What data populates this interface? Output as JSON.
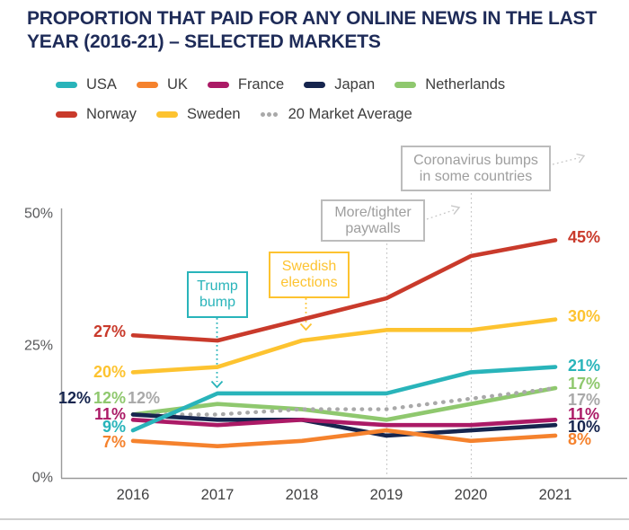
{
  "chart_data": {
    "type": "line",
    "title": "PROPORTION THAT PAID FOR ANY ONLINE NEWS IN THE LAST\nYEAR (2016-21) – SELECTED MARKETS",
    "title_color": "#1e2b58",
    "categories": [
      "2016",
      "2017",
      "2018",
      "2019",
      "2020",
      "2021"
    ],
    "unit": "%",
    "ylim": [
      0,
      50
    ],
    "yticks": [
      {
        "label": "0%",
        "value": 0
      },
      {
        "label": "25%",
        "value": 25
      },
      {
        "label": "50%",
        "value": 50
      }
    ],
    "grid": "off",
    "legend_position": "top",
    "series": [
      {
        "name": "USA",
        "color": "#29b4ba",
        "style": "solid",
        "values": [
          9,
          16,
          16,
          16,
          20,
          21
        ],
        "start_label": "9%",
        "end_label": "21%"
      },
      {
        "name": "UK",
        "color": "#f5822d",
        "style": "solid",
        "values": [
          7,
          6,
          7,
          9,
          7,
          8
        ],
        "start_label": "7%",
        "end_label": "8%"
      },
      {
        "name": "France",
        "color": "#ab1a66",
        "style": "solid",
        "values": [
          11,
          10,
          11,
          10,
          10,
          11
        ],
        "start_label": "11%",
        "end_label": "11%"
      },
      {
        "name": "Japan",
        "color": "#16254e",
        "style": "solid",
        "values": [
          12,
          11,
          11,
          8,
          9,
          10
        ],
        "start_label": "12%",
        "end_label": "10%"
      },
      {
        "name": "Netherlands",
        "color": "#8fc86e",
        "style": "solid",
        "values": [
          12,
          14,
          13,
          11,
          14,
          17
        ],
        "start_label": "12%",
        "end_label": "17%"
      },
      {
        "name": "Norway",
        "color": "#c93a2b",
        "style": "solid",
        "values": [
          27,
          26,
          30,
          34,
          42,
          45
        ],
        "start_label": "27%",
        "end_label": "45%"
      },
      {
        "name": "Sweden",
        "color": "#fdc330",
        "style": "solid",
        "values": [
          20,
          21,
          26,
          28,
          28,
          30
        ],
        "start_label": "20%",
        "end_label": "30%"
      },
      {
        "name": "20 Market Average",
        "color": "#a9a9a9",
        "style": "dotted",
        "values": [
          12,
          12,
          13,
          13,
          15,
          17
        ],
        "start_label": "12%",
        "end_label": "17%"
      }
    ],
    "annotations": [
      {
        "id": "trump",
        "text": "Trump bump",
        "color": "#29b4ba",
        "border_color": "#29b4ba"
      },
      {
        "id": "swedish",
        "text": "Swedish elections",
        "color": "#fdc330",
        "border_color": "#fdc330"
      },
      {
        "id": "paywalls",
        "text": "More/tighter paywalls",
        "color": "#9e9e9e",
        "border_color": "#bcbcbc"
      },
      {
        "id": "coronavirus",
        "text": "Coronavirus bumps in some countries",
        "color": "#9e9e9e",
        "border_color": "#bcbcbc"
      }
    ],
    "axis_color": "#9a9a9a",
    "tick_label_color": "#58595b"
  }
}
